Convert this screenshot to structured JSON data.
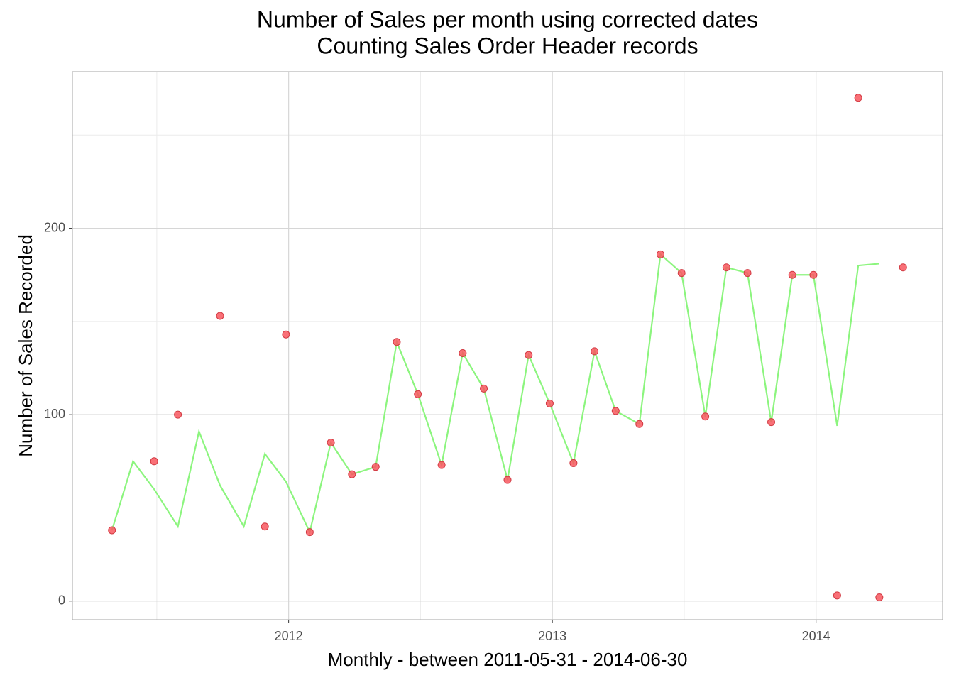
{
  "chart_data": {
    "type": "line",
    "title": "Number of Sales per month using corrected dates",
    "subtitle": "Counting Sales Order Header records",
    "x_label": "Monthly - between 2011-05-31 - 2014-06-30",
    "y_label": "Number of Sales Recorded",
    "x": [
      2011.33,
      2011.41,
      2011.49,
      2011.58,
      2011.66,
      2011.74,
      2011.83,
      2011.91,
      2011.99,
      2012.08,
      2012.16,
      2012.24,
      2012.33,
      2012.41,
      2012.49,
      2012.58,
      2012.66,
      2012.74,
      2012.83,
      2012.91,
      2012.99,
      2013.08,
      2013.16,
      2013.24,
      2013.33,
      2013.41,
      2013.49,
      2013.58,
      2013.66,
      2013.74,
      2013.83,
      2013.91,
      2013.99,
      2014.08,
      2014.16,
      2014.24,
      2014.33
    ],
    "series": [
      {
        "type": "line",
        "color": "#8cf57e",
        "values": [
          38,
          75,
          60,
          40,
          91,
          62,
          40,
          79,
          64,
          37,
          85,
          68,
          72,
          139,
          111,
          73,
          133,
          114,
          65,
          132,
          106,
          74,
          134,
          102,
          95,
          186,
          176,
          99,
          179,
          176,
          96,
          175,
          175,
          94,
          180,
          181,
          null
        ]
      },
      {
        "type": "scatter",
        "color": "#f8575f",
        "values": [
          38,
          null,
          75,
          100,
          null,
          153,
          null,
          40,
          143,
          37,
          85,
          68,
          72,
          139,
          111,
          73,
          133,
          114,
          65,
          132,
          106,
          74,
          134,
          102,
          95,
          186,
          176,
          99,
          179,
          176,
          96,
          175,
          175,
          3,
          270,
          2,
          179
        ]
      }
    ],
    "xlim": [
      2011.18,
      2014.48
    ],
    "ylim": [
      -10,
      284
    ],
    "xticks": [
      2012,
      2013,
      2014
    ],
    "yticks": [
      0,
      100,
      200
    ],
    "grid": true
  }
}
